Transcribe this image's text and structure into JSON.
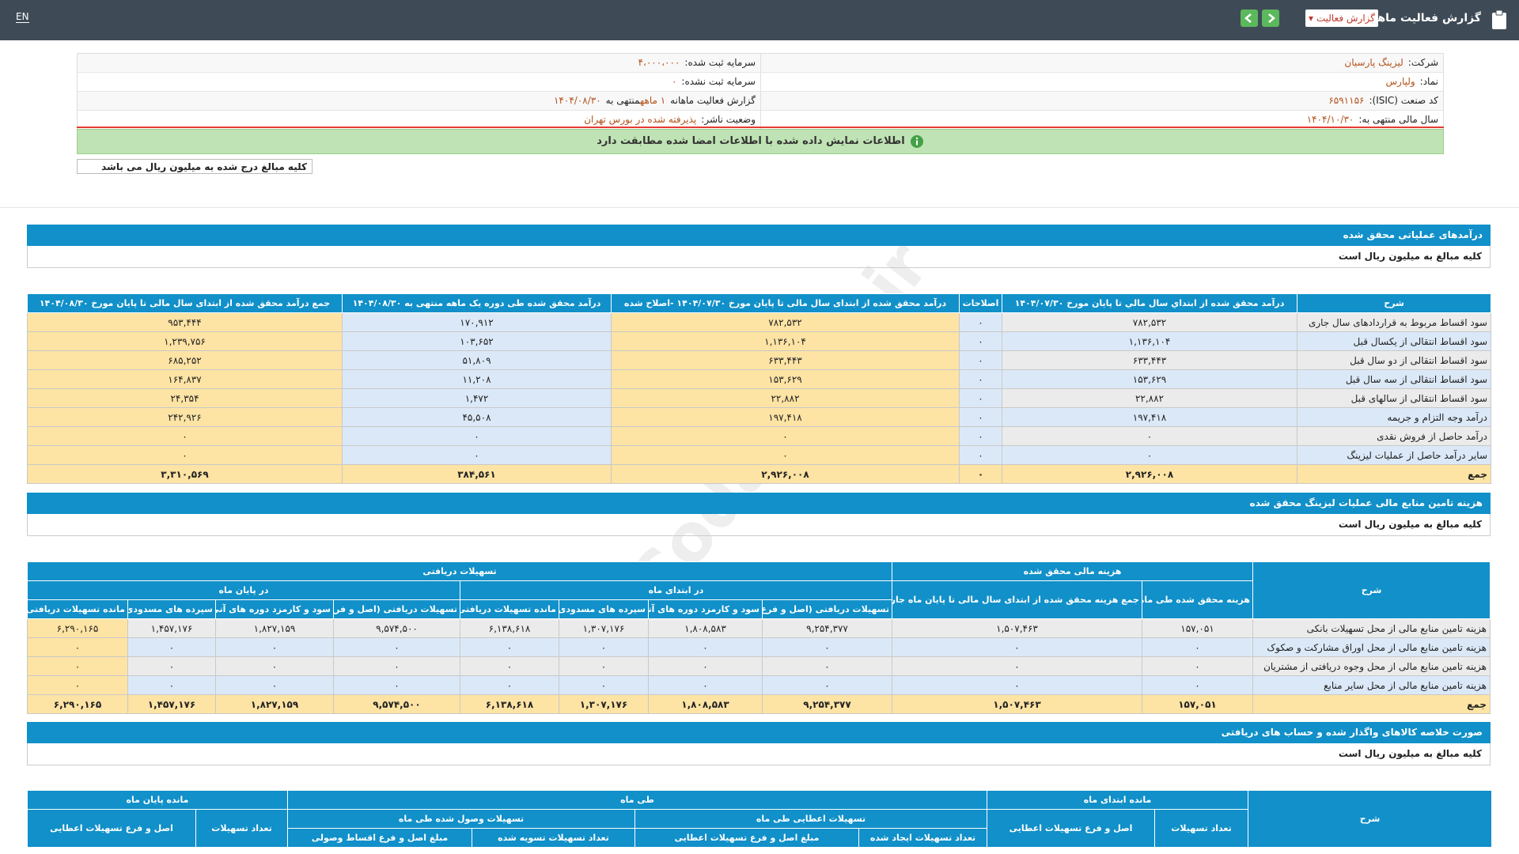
{
  "header": {
    "language": "EN",
    "title": "گزارش فعالیت ماهانه",
    "report_select": "گزارش فعالیت"
  },
  "company_info": {
    "right": [
      {
        "label": "شرکت:",
        "value": "لیزینگ پارسیان"
      },
      {
        "label": "نماد:",
        "value": "ولپارس"
      },
      {
        "label": "کد صنعت (ISIC):",
        "value": "۶۵۹۱۱۵۶"
      },
      {
        "label": "سال مالی منتهی به:",
        "value": "۱۴۰۴/۱۰/۳۰"
      }
    ],
    "left": [
      {
        "label": "سرمایه ثبت شده:",
        "value": "۴،۰۰۰،۰۰۰"
      },
      {
        "label": "سرمایه ثبت نشده:",
        "value": "۰"
      },
      {
        "label": "گزارش فعالیت ماهانه",
        "value": "۱ ماهه",
        "label2": "منتهی به",
        "value2": "۱۴۰۴/۰۸/۳۰"
      },
      {
        "label": "وضعیت ناشر:",
        "value": "پذیرفته شده در بورس تهران"
      }
    ]
  },
  "notice": "اطلاعات نمایش داده شده با اطلاعات امضا شده مطابقت دارد",
  "unit_note": "کلیه مبالغ درج شده به میلیون ریال می باشد",
  "watermark": "@Codal360_ir",
  "sections": [
    {
      "title": "درآمدهای عملیاتی محقق شده",
      "note": "کلیه مبالغ به میلیون ریال است",
      "table": {
        "header": [
          {
            "title": "شرح"
          },
          {
            "title": "درآمد محقق شده از ابتداي سال مالي تا پایان مورخ ۱۴۰۴/۰۷/۳۰"
          },
          {
            "title": "اصلاحات"
          },
          {
            "title": "درآمد محقق شده از ابتدای سال مالی تا پایان مورخ ۱۴۰۴/۰۷/۳۰ -اصلاح شده"
          },
          {
            "title": "درآمد محقق شده طی دوره یک ماهه منتهی به ۱۴۰۴/۰۸/۳۰"
          },
          {
            "title": "جمع درآمد محقق شده از ابتدای سال مالی تا پایان مورخ ۱۴۰۴/۰۸/۳۰"
          }
        ],
        "rows": [
          [
            "سود اقساط مربوط به قراردادهای سال جاری",
            "۷۸۲,۵۳۲",
            "۰",
            "۷۸۲,۵۳۲",
            "۱۷۰,۹۱۲",
            "۹۵۳,۴۴۴"
          ],
          [
            "سود اقساط انتقالی از یکسال قبل",
            "۱,۱۳۶,۱۰۴",
            "۰",
            "۱,۱۳۶,۱۰۴",
            "۱۰۳,۶۵۲",
            "۱,۲۳۹,۷۵۶"
          ],
          [
            "سود اقساط انتقالی از دو سال قبل",
            "۶۳۳,۴۴۳",
            "۰",
            "۶۳۳,۴۴۳",
            "۵۱,۸۰۹",
            "۶۸۵,۲۵۲"
          ],
          [
            "سود اقساط انتقالی از سه سال قبل",
            "۱۵۳,۶۲۹",
            "۰",
            "۱۵۳,۶۲۹",
            "۱۱,۲۰۸",
            "۱۶۴,۸۳۷"
          ],
          [
            "سود اقساط انتقالی از سالهای قبل",
            "۲۲,۸۸۲",
            "۰",
            "۲۲,۸۸۲",
            "۱,۴۷۲",
            "۲۴,۳۵۴"
          ],
          [
            "درآمد وجه التزام و جریمه",
            "۱۹۷,۴۱۸",
            "۰",
            "۱۹۷,۴۱۸",
            "۴۵,۵۰۸",
            "۲۴۲,۹۲۶"
          ],
          [
            "درآمد حاصل از فروش نقدی",
            "۰",
            "۰",
            "۰",
            "۰",
            "۰"
          ],
          [
            "سایر درآمد حاصل از عملیات لیزینگ",
            "۰",
            "۰",
            "۰",
            "۰",
            "۰"
          ],
          [
            "جمع",
            "۲,۹۲۶,۰۰۸",
            "۰",
            "۲,۹۲۶,۰۰۸",
            "۳۸۴,۵۶۱",
            "۳,۳۱۰,۵۶۹"
          ]
        ]
      }
    },
    {
      "title": "هزینه تامین منابع مالی عملیات لیزینگ محقق شده",
      "note": "کلیه مبالغ به میلیون ریال است",
      "table": {
        "header": [
          {
            "title": "شرح"
          },
          {
            "title": "هزینه مالی محقق شده",
            "children": [
              {
                "title": "هزینه محقق شده طی ماه"
              },
              {
                "title": "جمع هزینه محقق شده از ابتدای سال مالی تا پایان ماه جاری"
              }
            ]
          },
          {
            "title": "تسهیلات دریافتی",
            "children": [
              {
                "title": "در ابتدای ماه",
                "children": [
                  {
                    "title": "تسهیلات دریافتی (اصل و فرع)"
                  },
                  {
                    "title": "سود و کارمزد دوره های آتی"
                  },
                  {
                    "title": "سپرده های مسدودی"
                  },
                  {
                    "title": "مانده تسهیلات دریافتی"
                  }
                ]
              },
              {
                "title": "در پایان ماه",
                "children": [
                  {
                    "title": "تسهیلات دریافتی (اصل و فرع)"
                  },
                  {
                    "title": "سود و کارمزد دوره های آتی"
                  },
                  {
                    "title": "سپرده های مسدودی"
                  },
                  {
                    "title": "مانده تسهیلات دریافتی"
                  }
                ]
              }
            ]
          }
        ],
        "rows": [
          [
            "هزینه تامین منابع مالی از محل تسهیلات بانکی",
            "۱۵۷,۰۵۱",
            "۱,۵۰۷,۴۶۳",
            "۹,۲۵۴,۳۷۷",
            "۱,۸۰۸,۵۸۳",
            "۱,۳۰۷,۱۷۶",
            "۶,۱۳۸,۶۱۸",
            "۹,۵۷۴,۵۰۰",
            "۱,۸۲۷,۱۵۹",
            "۱,۴۵۷,۱۷۶",
            "۶,۲۹۰,۱۶۵"
          ],
          [
            "هزینه تامین منابع مالی از محل اوراق مشارکت و صکوک",
            "۰",
            "۰",
            "۰",
            "۰",
            "۰",
            "۰",
            "۰",
            "۰",
            "۰",
            "۰"
          ],
          [
            "هزینه تامین منابع مالی از محل وجوه دریافتی از مشتریان",
            "۰",
            "۰",
            "۰",
            "۰",
            "۰",
            "۰",
            "۰",
            "۰",
            "۰",
            "۰"
          ],
          [
            "هزینه تامین منابع مالی از محل سایر منابع",
            "۰",
            "۰",
            "۰",
            "۰",
            "۰",
            "۰",
            "۰",
            "۰",
            "۰",
            "۰"
          ],
          [
            "جمع",
            "۱۵۷,۰۵۱",
            "۱,۵۰۷,۴۶۳",
            "۹,۲۵۴,۳۷۷",
            "۱,۸۰۸,۵۸۳",
            "۱,۳۰۷,۱۷۶",
            "۶,۱۳۸,۶۱۸",
            "۹,۵۷۴,۵۰۰",
            "۱,۸۲۷,۱۵۹",
            "۱,۴۵۷,۱۷۶",
            "۶,۲۹۰,۱۶۵"
          ]
        ]
      }
    },
    {
      "title": "صورت خلاصه کالاهای واگذار شده و حساب های دریافتی",
      "note": "کلیه مبالغ به میلیون ریال است",
      "table": {
        "header": [
          {
            "title": "شرح"
          },
          {
            "title": "مانده ابتدای ماه",
            "children": [
              {
                "title": "تعداد تسهیلات"
              },
              {
                "title": "اصل و فرع تسهیلات اعطایی"
              }
            ]
          },
          {
            "title": "طی ماه",
            "children": [
              {
                "title": "تسهیلات اعطایی طی ماه",
                "children": [
                  {
                    "title": "تعداد تسهیلات ایجاد شده"
                  },
                  {
                    "title": "مبلغ اصل و فرع تسهیلات اعطایی"
                  }
                ]
              },
              {
                "title": "تسهیلات وصول شده طی ماه",
                "children": [
                  {
                    "title": "تعداد تسهیلات تسویه شده"
                  },
                  {
                    "title": "مبلغ اصل و فرع اقساط وصولی"
                  }
                ]
              }
            ]
          },
          {
            "title": "مانده پایان ماه",
            "children": [
              {
                "title": "تعداد تسهیلات"
              },
              {
                "title": "اصل و فرع تسهیلات اعطایی"
              }
            ]
          }
        ]
      }
    }
  ]
}
